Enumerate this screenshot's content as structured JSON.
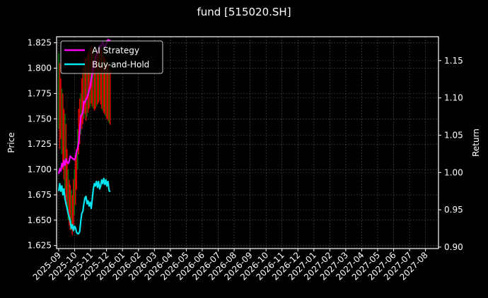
{
  "chart_data": {
    "type": "line",
    "title": "fund [515020.SH]",
    "ylabel": "Price",
    "ylabel_right": "Return",
    "xlabel": "",
    "ylim": [
      1.622,
      1.831
    ],
    "ylim_right": [
      0.898,
      1.182
    ],
    "yticks": [
      "1.625",
      "1.650",
      "1.675",
      "1.700",
      "1.725",
      "1.750",
      "1.775",
      "1.800",
      "1.825"
    ],
    "yticks_right": [
      "0.90",
      "0.95",
      "1.00",
      "1.05",
      "1.10",
      "1.15"
    ],
    "xticks": [
      "2025-09",
      "2025-10",
      "2025-11",
      "2025-12",
      "2026-01",
      "2026-02",
      "2026-03",
      "2026-04",
      "2026-05",
      "2026-06",
      "2026-07",
      "2026-08",
      "2026-09",
      "2026-10",
      "2026-11",
      "2026-12",
      "2027-01",
      "2027-02",
      "2027-03",
      "2027-04",
      "2027-05",
      "2027-06",
      "2027-07",
      "2027-08"
    ],
    "grid": true,
    "legend_position": "upper left",
    "background": "#000000",
    "legend": [
      "AI Strategy",
      "Buy-and-Hold"
    ],
    "series": [
      {
        "name": "AI Strategy",
        "axis": "right",
        "color": "#ff00ff",
        "x_day_offsets": [
          0,
          2,
          4,
          6,
          8,
          10,
          12,
          14,
          16,
          18,
          20,
          22,
          24,
          26,
          28,
          30,
          32,
          34,
          36,
          38,
          40,
          42,
          44,
          46,
          48,
          50,
          52,
          54,
          56,
          58,
          60,
          62,
          64,
          66,
          68,
          70,
          72,
          74,
          76,
          78,
          80,
          82,
          84,
          86,
          88,
          90,
          92,
          94,
          96,
          98
        ],
        "values": [
          0.998,
          1.005,
          1.002,
          1.012,
          1.008,
          1.016,
          1.01,
          1.018,
          1.014,
          1.012,
          1.015,
          1.022,
          1.02,
          1.019,
          1.018,
          1.017,
          1.02,
          1.028,
          1.032,
          1.04,
          1.055,
          1.075,
          1.078,
          1.08,
          1.095,
          1.094,
          1.098,
          1.1,
          1.105,
          1.11,
          1.115,
          1.125,
          1.132,
          1.14,
          1.148,
          1.152,
          1.158,
          1.162,
          1.165,
          1.17,
          1.168,
          1.172,
          1.175,
          1.17,
          1.168,
          1.172,
          1.175,
          1.178,
          1.176,
          1.178
        ]
      },
      {
        "name": "Buy-and-Hold",
        "axis": "right",
        "color": "#00e5ee",
        "x_day_offsets": [
          0,
          2,
          4,
          6,
          8,
          10,
          12,
          14,
          16,
          18,
          20,
          22,
          24,
          26,
          28,
          30,
          32,
          34,
          36,
          38,
          40,
          42,
          44,
          46,
          48,
          50,
          52,
          54,
          56,
          58,
          60,
          62,
          64,
          66,
          68,
          70,
          72,
          74,
          76,
          78,
          80,
          82,
          84,
          86,
          88,
          90,
          92,
          94,
          96,
          98
        ],
        "values": [
          0.975,
          0.985,
          0.975,
          0.982,
          0.97,
          0.978,
          0.965,
          0.958,
          0.952,
          0.945,
          0.94,
          0.935,
          0.925,
          0.93,
          0.922,
          0.928,
          0.926,
          0.92,
          0.918,
          0.918,
          0.921,
          0.935,
          0.945,
          0.948,
          0.958,
          0.966,
          0.968,
          0.958,
          0.962,
          0.955,
          0.96,
          0.952,
          0.965,
          0.978,
          0.985,
          0.982,
          0.988,
          0.98,
          0.988,
          0.978,
          0.982,
          0.99,
          0.985,
          0.992,
          0.984,
          0.99,
          0.982,
          0.988,
          0.976,
          0.974
        ]
      },
      {
        "name": "Price candles",
        "axis": "left",
        "type": "candlestick",
        "up_color": "#ff0000",
        "down_color": "#008000",
        "x_day_offsets": [
          0,
          2,
          4,
          6,
          8,
          10,
          12,
          14,
          16,
          18,
          20,
          22,
          24,
          26,
          28,
          30,
          32,
          34,
          36,
          38,
          40,
          42,
          44,
          46,
          48,
          50,
          52,
          54,
          56,
          58,
          60,
          62,
          64,
          66,
          68,
          70,
          72,
          74,
          76,
          78,
          80,
          82,
          84,
          86,
          88,
          90,
          92,
          94,
          96,
          98
        ],
        "high": [
          1.815,
          1.805,
          1.79,
          1.78,
          1.775,
          1.76,
          1.755,
          1.745,
          1.72,
          1.7,
          1.69,
          1.685,
          1.68,
          1.675,
          1.69,
          1.7,
          1.715,
          1.72,
          1.74,
          1.76,
          1.77,
          1.775,
          1.79,
          1.8,
          1.805,
          1.81,
          1.81,
          1.812,
          1.815,
          1.818,
          1.82,
          1.822,
          1.82,
          1.818,
          1.815,
          1.812,
          1.815,
          1.818,
          1.82,
          1.822,
          1.82,
          1.818,
          1.815,
          1.812,
          1.81,
          1.808,
          1.806,
          1.804,
          1.8,
          1.798
        ],
        "low": [
          1.74,
          1.72,
          1.73,
          1.715,
          1.7,
          1.69,
          1.68,
          1.67,
          1.66,
          1.65,
          1.645,
          1.64,
          1.64,
          1.635,
          1.645,
          1.655,
          1.665,
          1.68,
          1.7,
          1.715,
          1.725,
          1.735,
          1.74,
          1.745,
          1.75,
          1.755,
          1.748,
          1.752,
          1.756,
          1.76,
          1.762,
          1.765,
          1.762,
          1.76,
          1.758,
          1.76,
          1.762,
          1.764,
          1.766,
          1.768,
          1.764,
          1.76,
          1.758,
          1.756,
          1.754,
          1.752,
          1.75,
          1.748,
          1.746,
          1.744
        ]
      }
    ]
  }
}
